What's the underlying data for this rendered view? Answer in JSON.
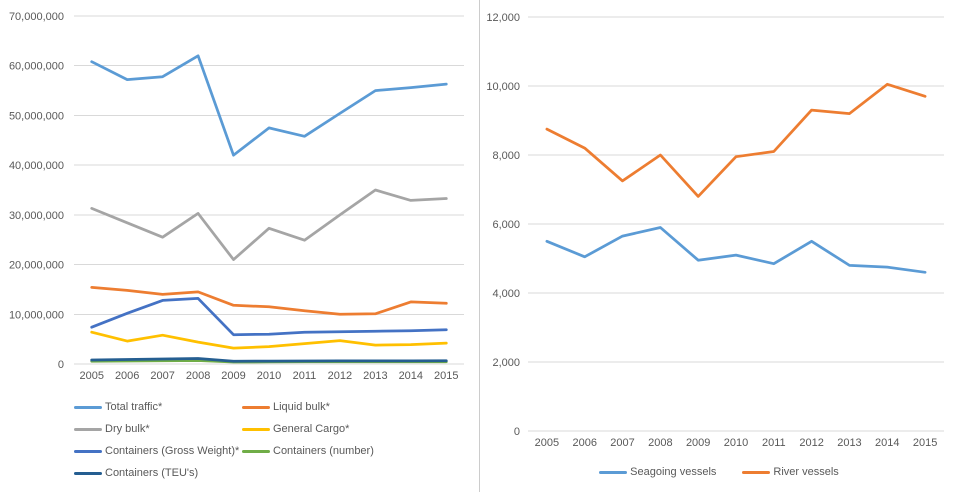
{
  "page": {
    "background": "#FFFFFF",
    "divider_color": "#CCCCCC",
    "gridline_color": "#D9D9D9",
    "axis_text_color": "#595959"
  },
  "chart_data": [
    {
      "id": "cargo-traffic",
      "type": "line",
      "title": "",
      "xlabel": "",
      "ylabel": "",
      "grid": true,
      "legend_position": "bottom-left-two-columns",
      "categories": [
        "2005",
        "2006",
        "2007",
        "2008",
        "2009",
        "2010",
        "2011",
        "2012",
        "2013",
        "2014",
        "2015"
      ],
      "ylim": [
        0,
        70000000
      ],
      "ytick_step": 10000000,
      "ytick_labels": [
        "0",
        "10,000,000",
        "20,000,000",
        "30,000,000",
        "40,000,000",
        "50,000,000",
        "60,000,000",
        "70,000,000"
      ],
      "series": [
        {
          "name": "Total traffic*",
          "color": "#5B9BD5",
          "values": [
            60800000,
            57200000,
            57800000,
            62000000,
            42000000,
            47500000,
            45800000,
            50400000,
            55000000,
            55600000,
            56300000
          ]
        },
        {
          "name": "Liquid bulk*",
          "color": "#ED7D31",
          "values": [
            15400000,
            14800000,
            14000000,
            14500000,
            11800000,
            11500000,
            10700000,
            10000000,
            10100000,
            12500000,
            12200000
          ]
        },
        {
          "name": "Dry bulk*",
          "color": "#A5A5A5",
          "values": [
            31300000,
            28400000,
            25500000,
            30300000,
            21000000,
            27300000,
            24900000,
            30000000,
            35000000,
            32900000,
            33300000
          ]
        },
        {
          "name": "General Cargo*",
          "color": "#FFC000",
          "values": [
            6400000,
            4600000,
            5800000,
            4400000,
            3200000,
            3500000,
            4100000,
            4700000,
            3800000,
            3900000,
            4200000
          ]
        },
        {
          "name": "Containers (Gross Weight)*",
          "color": "#4472C4",
          "values": [
            7400000,
            10200000,
            12800000,
            13200000,
            5900000,
            6000000,
            6400000,
            6500000,
            6600000,
            6700000,
            6900000
          ]
        },
        {
          "name": "Containers (number)",
          "color": "#70AD47",
          "values": [
            550000,
            600000,
            650000,
            700000,
            400000,
            420000,
            450000,
            450000,
            450000,
            460000,
            460000
          ]
        },
        {
          "name": "Containers (TEU's)",
          "color": "#255E91",
          "values": [
            800000,
            900000,
            1000000,
            1100000,
            550000,
            580000,
            600000,
            620000,
            620000,
            630000,
            640000
          ]
        }
      ]
    },
    {
      "id": "vessels",
      "type": "line",
      "title": "",
      "xlabel": "",
      "ylabel": "",
      "grid": true,
      "legend_position": "bottom-center",
      "categories": [
        "2005",
        "2006",
        "2007",
        "2008",
        "2009",
        "2010",
        "2011",
        "2012",
        "2013",
        "2014",
        "2015"
      ],
      "ylim": [
        0,
        12000
      ],
      "ytick_step": 2000,
      "ytick_labels": [
        "0",
        "2,000",
        "4,000",
        "6,000",
        "8,000",
        "10,000",
        "12,000"
      ],
      "series": [
        {
          "name": "Seagoing vessels",
          "color": "#5B9BD5",
          "values": [
            5500,
            5050,
            5650,
            5900,
            4950,
            5100,
            4850,
            5500,
            4800,
            4750,
            4600
          ]
        },
        {
          "name": "River vessels",
          "color": "#ED7D31",
          "values": [
            8750,
            8200,
            7250,
            8000,
            6800,
            7950,
            8100,
            9300,
            9200,
            10050,
            9700
          ]
        }
      ]
    }
  ]
}
